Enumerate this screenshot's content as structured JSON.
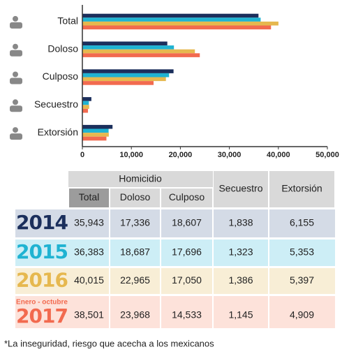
{
  "chart_data": {
    "type": "hbar",
    "categories": [
      "Total",
      "Doloso",
      "Culposo",
      "Secuestro",
      "Extorsión"
    ],
    "series": [
      {
        "name": "2014",
        "color": "#1b2f5c",
        "values": [
          35943,
          17336,
          18607,
          1838,
          6155
        ],
        "value_labels": [
          "35,943",
          "17,336",
          "18,607",
          "1,838",
          "6,155"
        ]
      },
      {
        "name": "2015",
        "color": "#1fb3d2",
        "values": [
          36383,
          18687,
          17696,
          1323,
          5353
        ],
        "value_labels": [
          "36,383",
          "18,687",
          "17,696",
          "1,323",
          "5,353"
        ]
      },
      {
        "name": "2016",
        "color": "#e6b84f",
        "values": [
          40015,
          22965,
          17050,
          1386,
          5397
        ],
        "value_labels": [
          "40,015",
          "22,965",
          "17,050",
          "1,386",
          "5,397"
        ]
      },
      {
        "name": "2017",
        "subtitle": "Enero - octubre",
        "color": "#f26a4f",
        "values": [
          38501,
          23968,
          14533,
          1145,
          4909
        ],
        "value_labels": [
          "38,501",
          "23,968",
          "14,533",
          "1,145",
          "4,909"
        ]
      }
    ],
    "xlim": [
      0,
      50000
    ],
    "xticks": [
      0,
      {
        "value": 10000,
        "label": "10,000"
      },
      {
        "value": 20000,
        "label": "20,000"
      },
      {
        "value": 30000,
        "label": "30,000"
      },
      {
        "value": 40000,
        "label": "40,000"
      },
      {
        "value": 50000,
        "label": "50,000"
      }
    ],
    "table": {
      "group_header": "Homicidio"
    },
    "footnote": "*La inseguridad, riesgo que acecha a los mexicanos"
  }
}
